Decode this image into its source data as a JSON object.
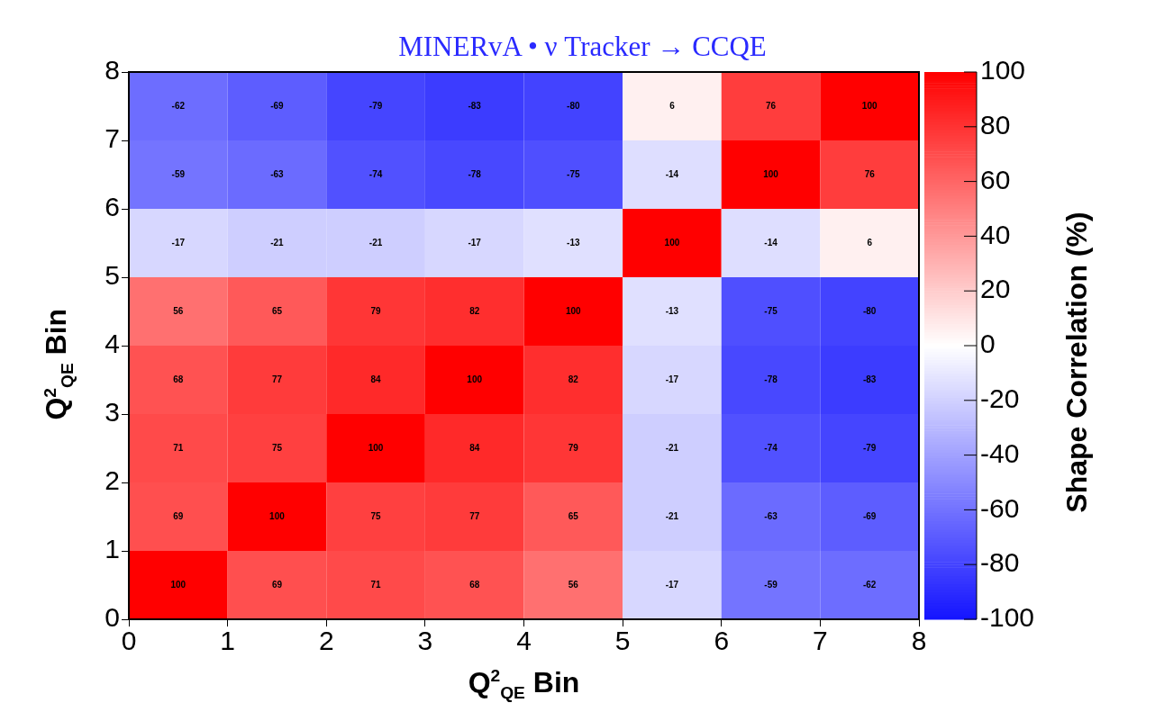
{
  "chart_data": {
    "type": "heatmap",
    "title": "MINERvA • ν Tracker → CCQE",
    "xlabel": "Q$^{2}$$_{QE}$ Bin",
    "ylabel": "Q$^{2}$$_{QE}$ Bin",
    "clabel": "Shape Correlation (%)",
    "x": [
      0.5,
      1.5,
      2.5,
      3.5,
      4.5,
      5.5,
      6.5,
      7.5
    ],
    "y": [
      7.5,
      6.5,
      5.5,
      4.5,
      3.5,
      2.5,
      1.5,
      0.5
    ],
    "xlim": [
      0,
      8
    ],
    "xticks": [
      0,
      1,
      2,
      3,
      4,
      5,
      6,
      7,
      8
    ],
    "ylim": [
      0,
      8
    ],
    "yticks": [
      0,
      1,
      2,
      3,
      4,
      5,
      6,
      7,
      8
    ],
    "clim": [
      -100,
      100
    ],
    "cticks": [
      -100,
      -80,
      -60,
      -40,
      -20,
      0,
      20,
      40,
      60,
      80,
      100
    ],
    "data_labels": true,
    "cells": [
      [
        -62,
        -69,
        -79,
        -83,
        -80,
        6,
        76,
        100
      ],
      [
        -59,
        -63,
        -74,
        -78,
        -75,
        -14,
        100,
        76
      ],
      [
        -17,
        -21,
        -21,
        -17,
        -13,
        100,
        -14,
        6
      ],
      [
        56,
        65,
        79,
        82,
        100,
        -13,
        -75,
        -80
      ],
      [
        68,
        77,
        84,
        100,
        82,
        -17,
        -78,
        -83
      ],
      [
        71,
        75,
        100,
        84,
        79,
        -21,
        -74,
        -79
      ],
      [
        69,
        100,
        75,
        77,
        65,
        -21,
        -63,
        -69
      ],
      [
        100,
        69,
        71,
        68,
        56,
        -17,
        -59,
        -62
      ]
    ]
  }
}
